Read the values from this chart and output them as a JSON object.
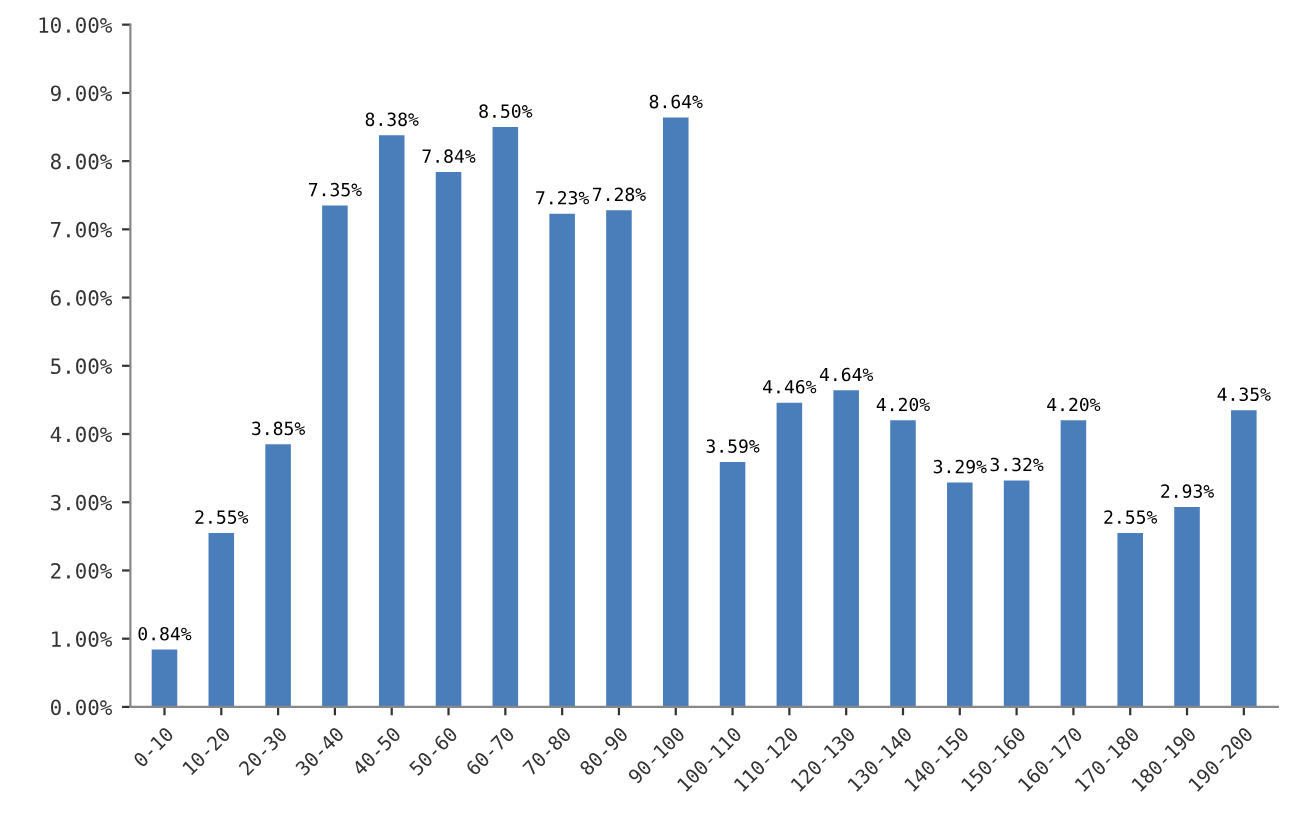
{
  "chart_data": {
    "type": "bar",
    "categories": [
      "0-10",
      "10-20",
      "20-30",
      "30-40",
      "40-50",
      "50-60",
      "60-70",
      "70-80",
      "80-90",
      "90-100",
      "100-110",
      "110-120",
      "120-130",
      "130-140",
      "140-150",
      "150-160",
      "160-170",
      "170-180",
      "180-190",
      "190-200"
    ],
    "values": [
      0.84,
      2.55,
      3.85,
      7.35,
      8.38,
      7.84,
      8.5,
      7.23,
      7.28,
      8.64,
      3.59,
      4.46,
      4.64,
      4.2,
      3.29,
      3.32,
      4.2,
      2.55,
      2.93,
      4.35
    ],
    "value_labels": [
      "0.84%",
      "2.55%",
      "3.85%",
      "7.35%",
      "8.38%",
      "7.84%",
      "8.50%",
      "7.23%",
      "7.28%",
      "8.64%",
      "3.59%",
      "4.46%",
      "4.64%",
      "4.20%",
      "3.29%",
      "3.32%",
      "4.20%",
      "2.55%",
      "2.93%",
      "4.35%"
    ],
    "color": "#4a7ebb",
    "ylim": [
      0,
      10
    ],
    "yticks": [
      {
        "value": 0,
        "label": "0.00%"
      },
      {
        "value": 1,
        "label": "1.00%"
      },
      {
        "value": 2,
        "label": "2.00%"
      },
      {
        "value": 3,
        "label": "3.00%"
      },
      {
        "value": 4,
        "label": "4.00%"
      },
      {
        "value": 5,
        "label": "5.00%"
      },
      {
        "value": 6,
        "label": "6.00%"
      },
      {
        "value": 7,
        "label": "7.00%"
      },
      {
        "value": 8,
        "label": "8.00%"
      },
      {
        "value": 9,
        "label": "9.00%"
      },
      {
        "value": 10,
        "label": "10.00%"
      }
    ],
    "grid": false,
    "legend": false
  }
}
